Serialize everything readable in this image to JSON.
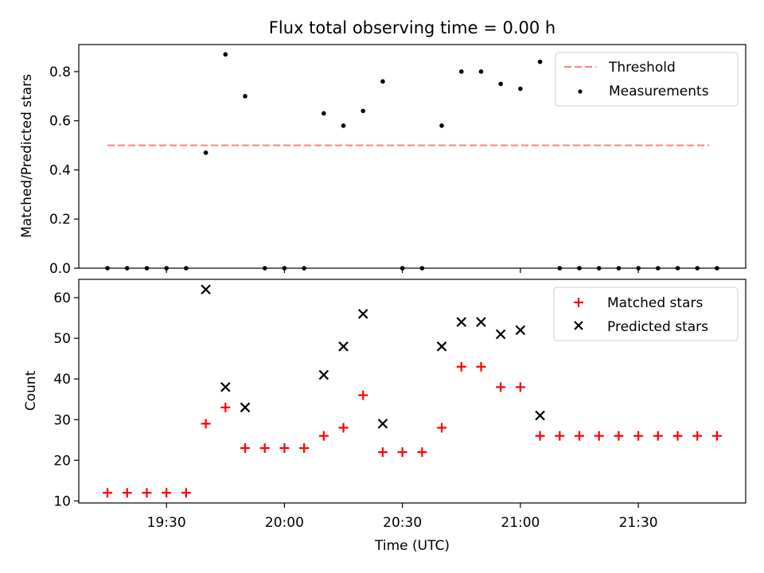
{
  "chart_data": [
    {
      "type": "scatter",
      "title": "Flux total observing time = 0.00 h",
      "xlabel": "",
      "ylabel": "Matched/Predicted stars",
      "ylim": [
        0,
        0.91
      ],
      "yticks": [
        "0.0",
        "0.2",
        "0.4",
        "0.6",
        "0.8"
      ],
      "legend_position": "top-right",
      "threshold": {
        "name": "Threshold",
        "value": 0.5,
        "x_start": "19:15",
        "x_end": "21:48",
        "color": "#ff7f7f"
      },
      "series": [
        {
          "name": "Measurements",
          "color": "#000000",
          "x": [
            "19:15",
            "19:20",
            "19:25",
            "19:30",
            "19:35",
            "19:40",
            "19:45",
            "19:50",
            "19:55",
            "20:00",
            "20:05",
            "20:10",
            "20:15",
            "20:20",
            "20:25",
            "20:30",
            "20:35",
            "20:40",
            "20:45",
            "20:50",
            "20:55",
            "21:00",
            "21:05",
            "21:10",
            "21:15",
            "21:20",
            "21:25",
            "21:30",
            "21:35",
            "21:40",
            "21:45",
            "21:50"
          ],
          "y": [
            0,
            0,
            0,
            0,
            0,
            0.47,
            0.87,
            0.7,
            0,
            0,
            0,
            0.63,
            0.58,
            0.64,
            0.76,
            0,
            0,
            0.58,
            0.8,
            0.8,
            0.75,
            0.73,
            0.84,
            0,
            0,
            0,
            0,
            0,
            0,
            0,
            0,
            0
          ]
        }
      ]
    },
    {
      "type": "scatter",
      "xlabel": "Time (UTC)",
      "ylabel": "Count",
      "ylim": [
        9.5,
        64.5
      ],
      "yticks": [
        "10",
        "20",
        "30",
        "40",
        "50",
        "60"
      ],
      "xticks": [
        "19:30",
        "20:00",
        "20:30",
        "21:00",
        "21:30"
      ],
      "legend_position": "top-right",
      "series": [
        {
          "name": "Matched stars",
          "color": "#ff0000",
          "marker": "plus",
          "x": [
            "19:15",
            "19:20",
            "19:25",
            "19:30",
            "19:35",
            "19:40",
            "19:45",
            "19:50",
            "19:55",
            "20:00",
            "20:05",
            "20:10",
            "20:15",
            "20:20",
            "20:25",
            "20:30",
            "20:35",
            "20:40",
            "20:45",
            "20:50",
            "20:55",
            "21:00",
            "21:05",
            "21:10",
            "21:15",
            "21:20",
            "21:25",
            "21:30",
            "21:35",
            "21:40",
            "21:45",
            "21:50"
          ],
          "y": [
            12,
            12,
            12,
            12,
            12,
            29,
            33,
            23,
            23,
            23,
            23,
            26,
            28,
            36,
            22,
            22,
            22,
            28,
            43,
            43,
            38,
            38,
            26,
            26,
            26,
            26,
            26,
            26,
            26,
            26,
            26,
            26
          ]
        },
        {
          "name": "Predicted stars",
          "color": "#000000",
          "marker": "x",
          "x": [
            "19:40",
            "19:45",
            "19:50",
            "20:10",
            "20:15",
            "20:20",
            "20:25",
            "20:40",
            "20:45",
            "20:50",
            "20:55",
            "21:00",
            "21:05"
          ],
          "y": [
            62,
            38,
            33,
            41,
            48,
            56,
            29,
            48,
            54,
            54,
            51,
            52,
            31
          ]
        }
      ]
    }
  ]
}
